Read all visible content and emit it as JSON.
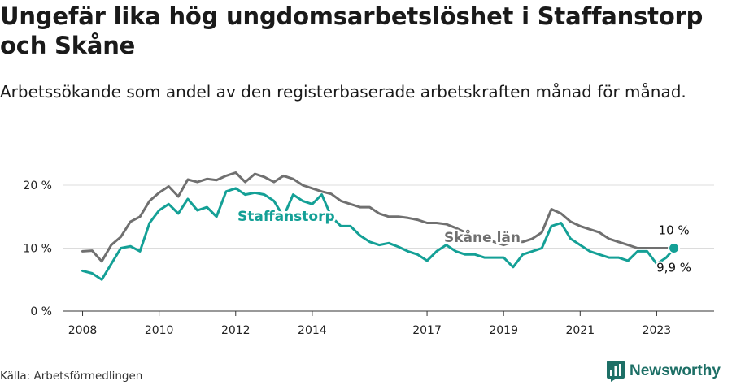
{
  "title": "Ungefär lika hög ungdomsarbetslöshet i Staffanstorp och Skåne",
  "subtitle": "Arbetssökande som andel av den registerbaserade arbetskraften månad för månad.",
  "source": "Källa: Arbetsförmedlingen",
  "brand": "Newsworthy",
  "colors": {
    "staffanstorp": "#14a096",
    "skane": "#707070",
    "grid": "#dcdcdc",
    "brand": "#1d6f66"
  },
  "chart_data": {
    "type": "line",
    "title": "Ungefär lika hög ungdomsarbetslöshet i Staffanstorp och Skåne",
    "xlabel": "",
    "ylabel": "",
    "ylim": [
      0,
      24
    ],
    "xlim": [
      2007.5,
      2024.5
    ],
    "yticks": [
      0,
      10,
      20
    ],
    "ytick_labels": [
      "0 %",
      "10 %",
      "20 %"
    ],
    "xticks": [
      2008,
      2010,
      2012,
      2014,
      2017,
      2019,
      2021,
      2023
    ],
    "xtick_labels": [
      "2008",
      "2010",
      "2012",
      "2014",
      "2017",
      "2019",
      "2021",
      "2023"
    ],
    "grid": true,
    "series": [
      {
        "name": "Skåne län",
        "label": "Skåne län",
        "color": "#707070",
        "end_label": "10 %",
        "x": [
          2008.0,
          2008.25,
          2008.5,
          2008.75,
          2009.0,
          2009.25,
          2009.5,
          2009.75,
          2010.0,
          2010.25,
          2010.5,
          2010.75,
          2011.0,
          2011.25,
          2011.5,
          2011.75,
          2012.0,
          2012.25,
          2012.5,
          2012.75,
          2013.0,
          2013.25,
          2013.5,
          2013.75,
          2014.0,
          2014.25,
          2014.5,
          2014.75,
          2015.0,
          2015.25,
          2015.5,
          2015.75,
          2016.0,
          2016.25,
          2016.5,
          2016.75,
          2017.0,
          2017.25,
          2017.5,
          2017.75,
          2018.0,
          2018.25,
          2018.5,
          2018.75,
          2019.0,
          2019.25,
          2019.5,
          2019.75,
          2020.0,
          2020.25,
          2020.5,
          2020.75,
          2021.0,
          2021.25,
          2021.5,
          2021.75,
          2022.0,
          2022.25,
          2022.5,
          2022.75,
          2023.0,
          2023.25,
          2023.45
        ],
        "y": [
          9.5,
          9.6,
          7.9,
          10.5,
          11.8,
          14.2,
          15.0,
          17.5,
          18.8,
          19.8,
          18.2,
          20.9,
          20.5,
          21.0,
          20.8,
          21.5,
          22.0,
          20.5,
          21.8,
          21.3,
          20.5,
          21.5,
          21.0,
          20.0,
          19.5,
          19.0,
          18.6,
          17.5,
          17.0,
          16.5,
          16.5,
          15.5,
          15.0,
          15.0,
          14.8,
          14.5,
          14.0,
          14.0,
          13.8,
          13.2,
          12.5,
          12.0,
          11.5,
          11.0,
          10.5,
          11.0,
          11.0,
          11.5,
          12.5,
          16.2,
          15.5,
          14.2,
          13.5,
          13.0,
          12.5,
          11.5,
          11.0,
          10.5,
          10.0,
          10.0,
          10.0,
          10.0,
          10.0
        ]
      },
      {
        "name": "Staffanstorp",
        "label": "Staffanstorp",
        "color": "#14a096",
        "end_label": "9,9 %",
        "x": [
          2008.0,
          2008.25,
          2008.5,
          2008.75,
          2009.0,
          2009.25,
          2009.5,
          2009.75,
          2010.0,
          2010.25,
          2010.5,
          2010.75,
          2011.0,
          2011.25,
          2011.5,
          2011.75,
          2012.0,
          2012.25,
          2012.5,
          2012.75,
          2013.0,
          2013.25,
          2013.5,
          2013.75,
          2014.0,
          2014.25,
          2014.5,
          2014.75,
          2015.0,
          2015.25,
          2015.5,
          2015.75,
          2016.0,
          2016.25,
          2016.5,
          2016.75,
          2017.0,
          2017.25,
          2017.5,
          2017.75,
          2018.0,
          2018.25,
          2018.5,
          2018.75,
          2019.0,
          2019.25,
          2019.5,
          2019.75,
          2020.0,
          2020.25,
          2020.5,
          2020.75,
          2021.0,
          2021.25,
          2021.5,
          2021.75,
          2022.0,
          2022.25,
          2022.5,
          2022.75,
          2023.0,
          2023.25,
          2023.45
        ],
        "y": [
          6.4,
          6.0,
          5.0,
          7.5,
          10.0,
          10.3,
          9.5,
          14.0,
          16.0,
          17.0,
          15.5,
          17.8,
          16.0,
          16.5,
          15.0,
          19.0,
          19.5,
          18.5,
          18.8,
          18.5,
          17.5,
          15.0,
          18.5,
          17.5,
          17.0,
          18.5,
          15.0,
          13.5,
          13.5,
          12.0,
          11.0,
          10.5,
          10.8,
          10.2,
          9.5,
          9.0,
          8.0,
          9.5,
          10.5,
          9.5,
          9.0,
          9.0,
          8.5,
          8.5,
          8.5,
          7.0,
          9.0,
          9.5,
          10.0,
          13.5,
          14.0,
          11.5,
          10.5,
          9.5,
          9.0,
          8.5,
          8.5,
          8.0,
          9.5,
          9.5,
          7.5,
          8.5,
          9.9
        ]
      }
    ]
  }
}
